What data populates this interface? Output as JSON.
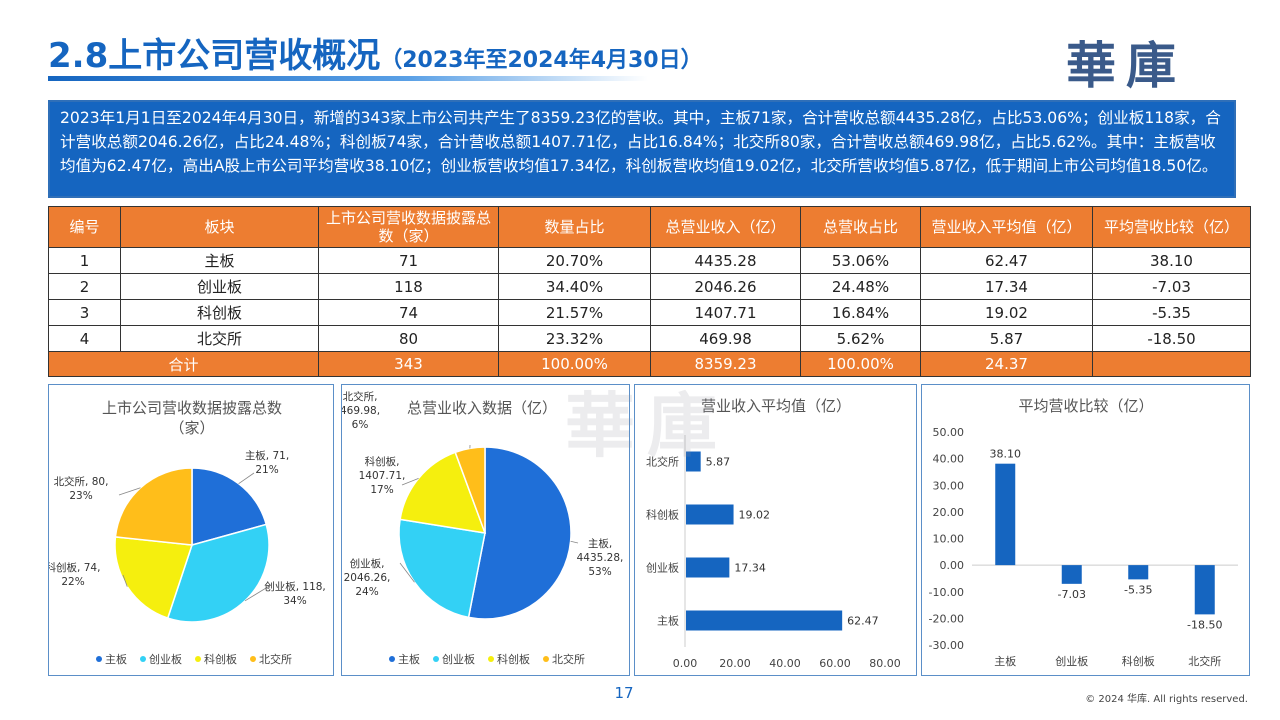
{
  "header": {
    "title": "2.8上市公司营收概况",
    "subtitle": "（2023年至2024年4月30日）",
    "logo_text": "華庫"
  },
  "summary": {
    "text": "2023年1月1日至2024年4月30日，新增的343家上市公司共产生了8359.23亿的营收。其中，主板71家，合计营收总额4435.28亿，占比53.06%；创业板118家，合计营收总额2046.26亿，占比24.48%；科创板74家，合计营收总额1407.71亿，占比16.84%；北交所80家，合计营收总额469.98亿，占比5.62%。其中：主板营收均值为62.47亿，高出A股上市公司平均营收38.10亿；创业板营收均值17.34亿，科创板营收均值19.02亿，北交所营收均值5.87亿，低于期间上市公司均值18.50亿。"
  },
  "table": {
    "headers": [
      "编号",
      "板块",
      "上市公司营收数据披露总数（家）",
      "数量占比",
      "总营业收入（亿）",
      "总营收占比",
      "营业收入平均值（亿）",
      "平均营收比较（亿）"
    ],
    "rows": [
      [
        "1",
        "主板",
        "71",
        "20.70%",
        "4435.28",
        "53.06%",
        "62.47",
        "38.10"
      ],
      [
        "2",
        "创业板",
        "118",
        "34.40%",
        "2046.26",
        "24.48%",
        "17.34",
        "-7.03"
      ],
      [
        "3",
        "科创板",
        "74",
        "21.57%",
        "1407.71",
        "16.84%",
        "19.02",
        "-5.35"
      ],
      [
        "4",
        "北交所",
        "80",
        "23.32%",
        "469.98",
        "5.62%",
        "5.87",
        "-18.50"
      ]
    ],
    "total": [
      "合计",
      "343",
      "100.00%",
      "8359.23",
      "100.00%",
      "24.37",
      ""
    ]
  },
  "colors": {
    "primary": "#1565C0",
    "header_orange": "#ED7D31",
    "主板": "#1F6FD8",
    "创业板": "#33D1F5",
    "科创板": "#F5EF0E",
    "北交所": "#FFBE1A"
  },
  "chart_data": [
    {
      "type": "pie",
      "title": "上市公司营收数据披露总数（家）",
      "title_lines": [
        "上市公司营收数据披露总数",
        "（家）"
      ],
      "labels": [
        "主板",
        "创业板",
        "科创板",
        "北交所"
      ],
      "values": [
        71,
        118,
        74,
        80
      ],
      "percent_labels": [
        "21%",
        "34%",
        "22%",
        "23%"
      ],
      "legend": "bottom"
    },
    {
      "type": "pie",
      "title": "总营业收入数据（亿）",
      "labels": [
        "主板",
        "创业板",
        "科创板",
        "北交所"
      ],
      "values": [
        4435.28,
        2046.26,
        1407.71,
        469.98
      ],
      "value_labels": [
        "4435.28",
        "2046.26",
        "1407.71",
        "469.98"
      ],
      "percent_labels": [
        "53%",
        "24%",
        "17%",
        "6%"
      ],
      "legend": "bottom"
    },
    {
      "type": "bar",
      "orientation": "horizontal",
      "title": "营业收入平均值（亿）",
      "categories": [
        "北交所",
        "科创板",
        "创业板",
        "主板"
      ],
      "values": [
        5.87,
        19.02,
        17.34,
        62.47
      ],
      "value_labels": [
        "5.87",
        "19.02",
        "17.34",
        "62.47"
      ],
      "xlim": [
        0,
        80
      ],
      "ticks": [
        "0.00",
        "20.00",
        "40.00",
        "60.00",
        "80.00"
      ],
      "grid": false
    },
    {
      "type": "bar",
      "orientation": "vertical",
      "title": "平均营收比较（亿）",
      "categories": [
        "主板",
        "创业板",
        "科创板",
        "北交所"
      ],
      "values": [
        38.1,
        -7.03,
        -5.35,
        -18.5
      ],
      "value_labels": [
        "38.10",
        "-7.03",
        "-5.35",
        "-18.50"
      ],
      "ylim": [
        -30,
        50
      ],
      "ticks": [
        "50.00",
        "40.00",
        "30.00",
        "20.00",
        "10.00",
        "0.00",
        "-10.00",
        "-20.00",
        "-30.00"
      ],
      "grid": false
    }
  ],
  "footer": {
    "page_number": "17",
    "copyright": "© 2024 华库. All rights reserved."
  }
}
